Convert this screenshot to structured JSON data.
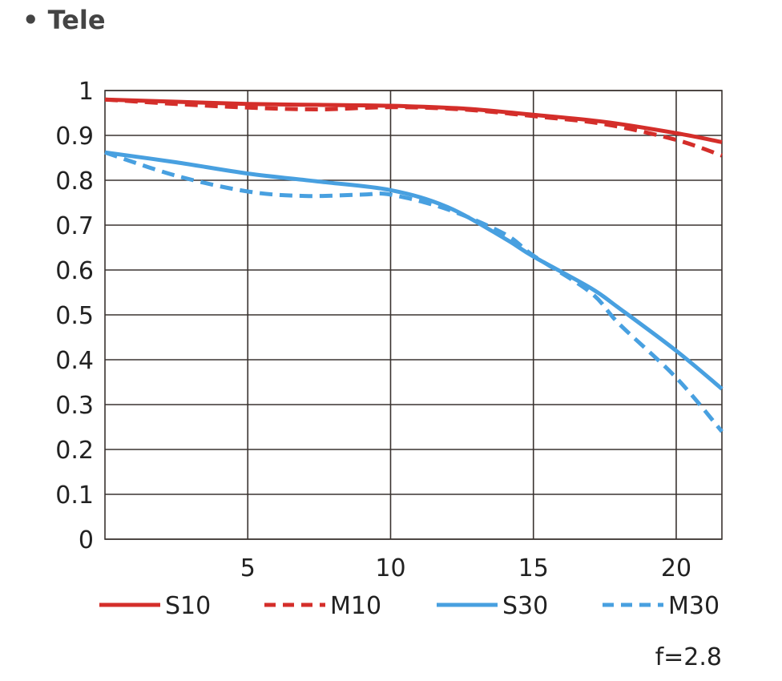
{
  "title": "• Tele",
  "chart_data": {
    "type": "line",
    "title": "Tele",
    "xlabel": "",
    "ylabel": "",
    "xlim": [
      0,
      21.6
    ],
    "ylim": [
      0,
      1
    ],
    "grid": true,
    "x_ticks": [
      5,
      10,
      15,
      20
    ],
    "y_ticks": [
      0,
      0.1,
      0.2,
      0.3,
      0.4,
      0.5,
      0.6,
      0.7,
      0.8,
      0.9,
      1
    ],
    "y_tick_labels": [
      "0",
      "0.1",
      "0.2",
      "0.3",
      "0.4",
      "0.5",
      "0.6",
      "0.7",
      "0.8",
      "0.9",
      "1"
    ],
    "x_tick_labels": [
      "5",
      "10",
      "15",
      "20"
    ],
    "legend_position": "bottom",
    "annotation": "f=2.8",
    "series": [
      {
        "name": "S10",
        "color": "#d42e2a",
        "dash": false,
        "x": [
          0,
          2.5,
          5,
          7.5,
          10,
          12.5,
          15,
          17.5,
          20,
          21.6
        ],
        "y": [
          0.98,
          0.975,
          0.97,
          0.968,
          0.966,
          0.96,
          0.946,
          0.93,
          0.905,
          0.885
        ]
      },
      {
        "name": "M10",
        "color": "#d42e2a",
        "dash": true,
        "x": [
          0,
          2.5,
          5,
          7.5,
          10,
          12.5,
          15,
          17.5,
          20,
          21.6
        ],
        "y": [
          0.98,
          0.97,
          0.962,
          0.958,
          0.963,
          0.958,
          0.943,
          0.925,
          0.89,
          0.855
        ]
      },
      {
        "name": "S30",
        "color": "#48a0e0",
        "dash": false,
        "x": [
          0,
          2.5,
          5,
          7.5,
          10,
          12,
          14,
          15,
          17,
          18,
          20,
          21.6
        ],
        "y": [
          0.862,
          0.84,
          0.815,
          0.797,
          0.778,
          0.74,
          0.67,
          0.63,
          0.56,
          0.515,
          0.42,
          0.335
        ]
      },
      {
        "name": "M30",
        "color": "#48a0e0",
        "dash": true,
        "x": [
          0,
          2.5,
          5,
          7,
          9,
          10,
          12,
          14,
          15,
          17,
          18,
          20,
          21.6
        ],
        "y": [
          0.862,
          0.81,
          0.775,
          0.765,
          0.768,
          0.768,
          0.735,
          0.68,
          0.632,
          0.55,
          0.48,
          0.36,
          0.24
        ]
      }
    ]
  }
}
